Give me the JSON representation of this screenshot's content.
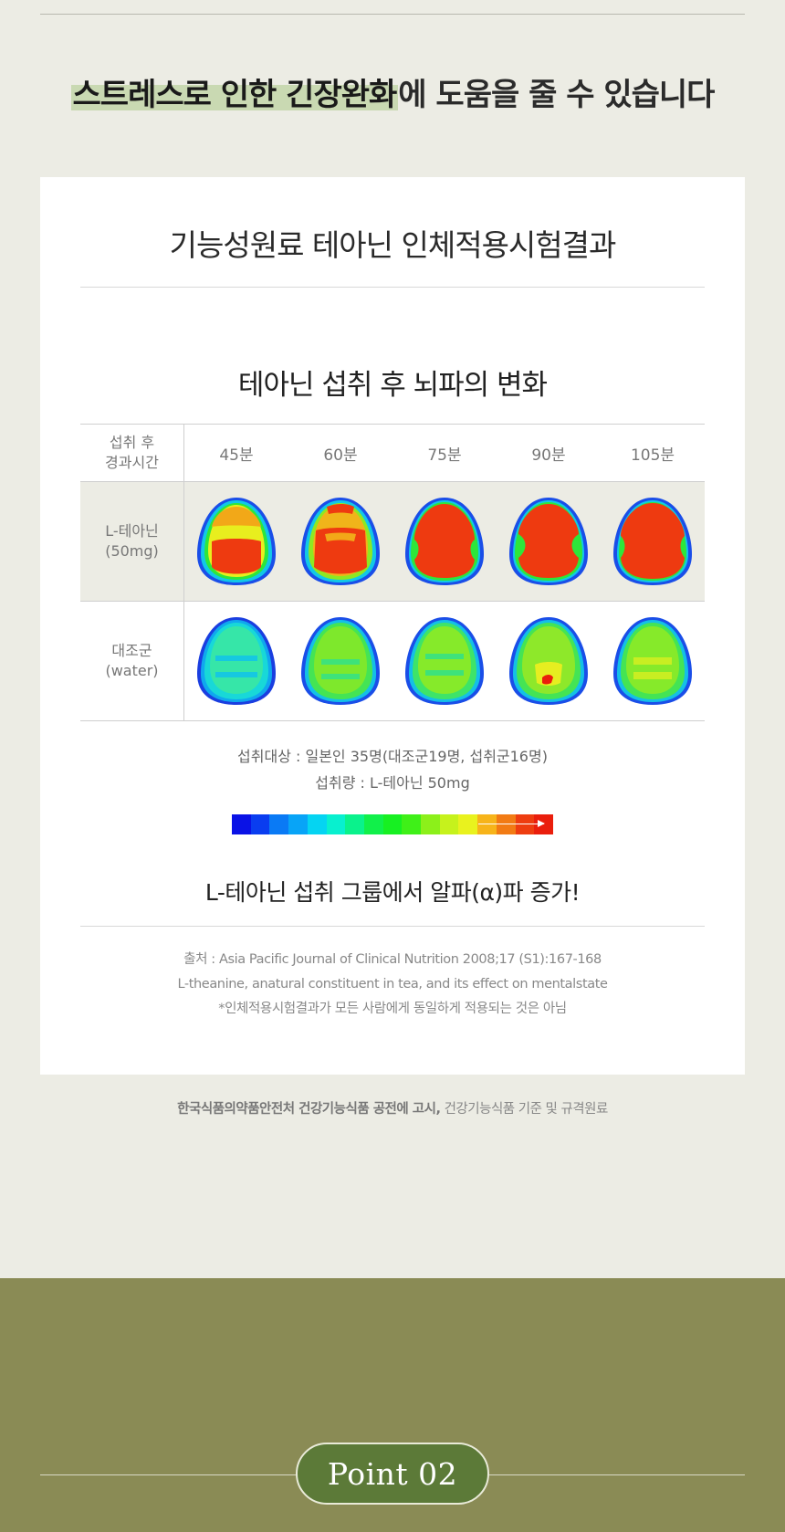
{
  "headline": {
    "highlight": "스트레스로 인한 긴장완화",
    "rest": "에 도움을 줄 수 있습니다"
  },
  "card": {
    "title": "기능성원료 테아닌 인체적용시험결과",
    "subtitle": "테아닌 섭취 후 뇌파의 변화",
    "table": {
      "header_label_line1": "섭취 후",
      "header_label_line2": "경과시간",
      "times": [
        "45분",
        "60분",
        "75분",
        "90분",
        "105분"
      ],
      "rows": [
        {
          "label_line1": "L-테아닌",
          "label_line2": "(50mg)"
        },
        {
          "label_line1": "대조군",
          "label_line2": "(water)"
        }
      ]
    },
    "subjects": "섭취대상 : 일본인 35명(대조군19명, 섭취군16명)",
    "dose": "섭취량 : L-테아닌 50mg",
    "colorbar": [
      "#0a12e6",
      "#0a3df0",
      "#0a7af5",
      "#08a4f7",
      "#05d4f2",
      "#08f0cf",
      "#0af28c",
      "#11f04a",
      "#17f022",
      "#3ff018",
      "#8cf01a",
      "#c6f21c",
      "#e9f21e",
      "#f7b41a",
      "#f27b14",
      "#ee3d10",
      "#ea1e0c"
    ],
    "conclusion": "L-테아닌 섭취 그룹에서 알파(α)파 증가!",
    "source_line1": "출처 : Asia Pacific Journal of Clinical Nutrition 2008;17 (S1):167-168",
    "source_line2": "L-theanine, anatural constituent in tea, and its effect on mentalstate",
    "source_line3": "*인체적용시험결과가 모든 사람에게 동일하게 적용되는 것은 아님"
  },
  "notice": {
    "bold": "한국식품의약품안전처 건강기능식품 공전에 고시,",
    "rest": " 건강기능식품 기준 및 규격원료"
  },
  "point": {
    "label": "Point 02"
  },
  "colors": {
    "background": "#ecece4",
    "highlight": "#c9d9b2",
    "bottom_band": "#8a8b55",
    "pill": "#5c7a38"
  }
}
